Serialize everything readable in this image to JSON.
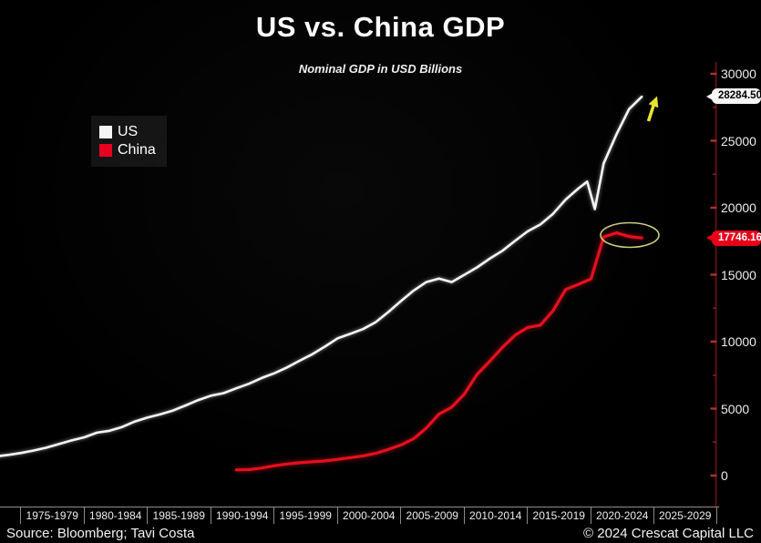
{
  "title": "US vs. China GDP",
  "subtitle": "Nominal GDP in USD Billions",
  "legend": {
    "position": "top-left",
    "items": [
      {
        "label": "US",
        "color": "#f5f5f5"
      },
      {
        "label": "China",
        "color": "#e8001e"
      }
    ]
  },
  "annotations": {
    "us_end_label": "28284.50",
    "china_end_label": "17746.16",
    "arrow_icon": "yellow-up-arrow",
    "highlight": "yellow-ellipse-around-china-line-end"
  },
  "footer": {
    "source": "Source: Bloomberg; Tavi Costa",
    "copyright": "© 2024 Crescat Capital LLC"
  },
  "colors": {
    "background": "#000000",
    "us_line": "#f5f5f5",
    "china_line": "#e60e1c",
    "axis_line": "#5a1212",
    "major_tick": "#b03030",
    "minor_tick": "#7a1d1d",
    "arrow": "#e9e32e",
    "ellipse": "#caca80",
    "us_callout_bg": "#f6f6f6",
    "china_callout_bg": "#e60019"
  },
  "chart_data": {
    "type": "line",
    "title": "US vs. China GDP",
    "subtitle": "Nominal GDP in USD Billions",
    "grid": false,
    "legend_position": "top-left",
    "x_axis": {
      "labels": [
        "1975-1979",
        "1980-1984",
        "1985-1989",
        "1990-1994",
        "1995-1999",
        "2000-2004",
        "2005-2009",
        "2010-2014",
        "2015-2019",
        "2020-2024",
        "2025-2029"
      ]
    },
    "y_axis": {
      "ticks": [
        0,
        5000,
        10000,
        15000,
        20000,
        25000,
        30000
      ],
      "minor_tick_step": 2500,
      "range": [
        0,
        30000
      ],
      "side": "right"
    },
    "series": [
      {
        "name": "US",
        "color": "#f5f5f5",
        "end_label": "28284.50",
        "points": [
          [
            1973,
            1425
          ],
          [
            1974,
            1545
          ],
          [
            1975,
            1685
          ],
          [
            1976,
            1873
          ],
          [
            1977,
            2082
          ],
          [
            1978,
            2352
          ],
          [
            1979,
            2627
          ],
          [
            1980,
            2857
          ],
          [
            1981,
            3207
          ],
          [
            1982,
            3344
          ],
          [
            1983,
            3634
          ],
          [
            1984,
            4038
          ],
          [
            1985,
            4339
          ],
          [
            1986,
            4580
          ],
          [
            1987,
            4855
          ],
          [
            1988,
            5236
          ],
          [
            1989,
            5642
          ],
          [
            1990,
            5963
          ],
          [
            1991,
            6158
          ],
          [
            1992,
            6520
          ],
          [
            1993,
            6859
          ],
          [
            1994,
            7287
          ],
          [
            1995,
            7640
          ],
          [
            1996,
            8073
          ],
          [
            1997,
            8578
          ],
          [
            1998,
            9063
          ],
          [
            1999,
            9631
          ],
          [
            2000,
            10251
          ],
          [
            2001,
            10582
          ],
          [
            2002,
            10936
          ],
          [
            2003,
            11458
          ],
          [
            2004,
            12214
          ],
          [
            2005,
            13037
          ],
          [
            2006,
            13815
          ],
          [
            2007,
            14452
          ],
          [
            2008,
            14713
          ],
          [
            2009,
            14449
          ],
          [
            2010,
            14992
          ],
          [
            2011,
            15543
          ],
          [
            2012,
            16197
          ],
          [
            2013,
            16785
          ],
          [
            2014,
            17527
          ],
          [
            2015,
            18238
          ],
          [
            2016,
            18745
          ],
          [
            2017,
            19543
          ],
          [
            2018,
            20612
          ],
          [
            2019,
            21433
          ],
          [
            2019.7,
            21950
          ],
          [
            2020.3,
            19900
          ],
          [
            2021,
            23315
          ],
          [
            2022,
            25463
          ],
          [
            2023,
            27361
          ],
          [
            2024,
            28284.5
          ]
        ]
      },
      {
        "name": "China",
        "color": "#e60e1c",
        "end_label": "17746.16",
        "points": [
          [
            1992,
            427
          ],
          [
            1993,
            445
          ],
          [
            1994,
            564
          ],
          [
            1995,
            735
          ],
          [
            1996,
            864
          ],
          [
            1997,
            962
          ],
          [
            1998,
            1029
          ],
          [
            1999,
            1094
          ],
          [
            2000,
            1211
          ],
          [
            2001,
            1339
          ],
          [
            2002,
            1471
          ],
          [
            2003,
            1660
          ],
          [
            2004,
            1955
          ],
          [
            2005,
            2286
          ],
          [
            2006,
            2752
          ],
          [
            2007,
            3550
          ],
          [
            2008,
            4594
          ],
          [
            2009,
            5102
          ],
          [
            2010,
            6087
          ],
          [
            2011,
            7552
          ],
          [
            2012,
            8532
          ],
          [
            2013,
            9570
          ],
          [
            2014,
            10476
          ],
          [
            2015,
            11062
          ],
          [
            2016,
            11233
          ],
          [
            2017,
            12310
          ],
          [
            2018,
            13895
          ],
          [
            2019,
            14280
          ],
          [
            2020,
            14688
          ],
          [
            2021,
            17820
          ],
          [
            2022,
            18120
          ],
          [
            2023,
            17850
          ],
          [
            2024,
            17746.16
          ]
        ]
      }
    ]
  }
}
